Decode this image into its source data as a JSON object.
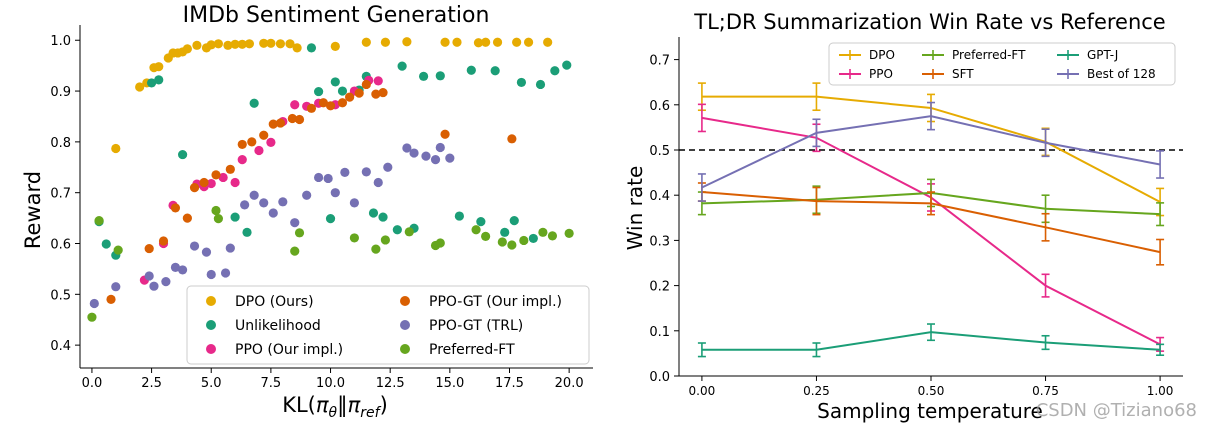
{
  "watermark": "CSDN @Tiziano68",
  "colors": {
    "dpo": "#e6ab02",
    "unlikelihood": "#1b9e77",
    "ppo": "#e7298a",
    "ppo_gt_ours": "#d95f02",
    "ppo_gt_trl": "#7570b3",
    "preferred_ft": "#66a61e",
    "gptj": "#1b9e77",
    "sft": "#d95f02",
    "best128": "#7570b3"
  },
  "chart_data": [
    {
      "type": "scatter",
      "title": "IMDb Sentiment Generation",
      "xlabel": "KL(πθ‖πref)",
      "ylabel": "Reward",
      "xlim": [
        -0.5,
        21.0
      ],
      "ylim": [
        0.355,
        1.03
      ],
      "xticks": [
        0.0,
        2.5,
        5.0,
        7.5,
        10.0,
        12.5,
        15.0,
        17.5,
        20.0
      ],
      "xtick_labels": [
        "0.0",
        "2.5",
        "5.0",
        "7.5",
        "10.0",
        "12.5",
        "15.0",
        "17.5",
        "20.0"
      ],
      "yticks": [
        0.4,
        0.5,
        0.6,
        0.7,
        0.8,
        0.9,
        1.0
      ],
      "ytick_labels": [
        "0.4",
        "0.5",
        "0.6",
        "0.7",
        "0.8",
        "0.9",
        "1.0"
      ],
      "legend_position": "bottom-right",
      "legend_columns": 2,
      "series": [
        {
          "name": "DPO (Ours)",
          "color_key": "dpo",
          "points": [
            [
              1.0,
              0.787
            ],
            [
              2.0,
              0.908
            ],
            [
              2.3,
              0.916
            ],
            [
              2.6,
              0.946
            ],
            [
              2.8,
              0.948
            ],
            [
              3.2,
              0.965
            ],
            [
              3.4,
              0.975
            ],
            [
              3.6,
              0.975
            ],
            [
              3.8,
              0.977
            ],
            [
              4.0,
              0.983
            ],
            [
              4.4,
              0.99
            ],
            [
              4.8,
              0.985
            ],
            [
              5.0,
              0.991
            ],
            [
              5.3,
              0.993
            ],
            [
              5.7,
              0.99
            ],
            [
              6.0,
              0.992
            ],
            [
              6.3,
              0.992
            ],
            [
              6.6,
              0.993
            ],
            [
              7.2,
              0.994
            ],
            [
              7.5,
              0.994
            ],
            [
              7.9,
              0.993
            ],
            [
              8.3,
              0.993
            ],
            [
              8.6,
              0.985
            ],
            [
              10.2,
              0.988
            ],
            [
              11.5,
              0.996
            ],
            [
              12.3,
              0.996
            ],
            [
              13.2,
              0.997
            ],
            [
              14.8,
              0.996
            ],
            [
              15.3,
              0.996
            ],
            [
              16.2,
              0.995
            ],
            [
              16.5,
              0.996
            ],
            [
              17.0,
              0.996
            ],
            [
              17.8,
              0.996
            ],
            [
              18.3,
              0.996
            ],
            [
              19.1,
              0.996
            ]
          ]
        },
        {
          "name": "Unlikelihood",
          "color_key": "unlikelihood",
          "points": [
            [
              0.3,
              0.643
            ],
            [
              0.6,
              0.599
            ],
            [
              1.0,
              0.577
            ],
            [
              2.5,
              0.916
            ],
            [
              2.8,
              0.922
            ],
            [
              3.8,
              0.775
            ],
            [
              6.0,
              0.652
            ],
            [
              6.5,
              0.622
            ],
            [
              6.8,
              0.876
            ],
            [
              9.2,
              0.985
            ],
            [
              9.5,
              0.899
            ],
            [
              10.0,
              0.649
            ],
            [
              10.2,
              0.918
            ],
            [
              10.5,
              0.9
            ],
            [
              11.2,
              0.902
            ],
            [
              11.5,
              0.929
            ],
            [
              11.8,
              0.66
            ],
            [
              12.2,
              0.652
            ],
            [
              12.8,
              0.627
            ],
            [
              13.0,
              0.949
            ],
            [
              13.5,
              0.63
            ],
            [
              13.9,
              0.929
            ],
            [
              14.6,
              0.93
            ],
            [
              15.4,
              0.654
            ],
            [
              15.9,
              0.941
            ],
            [
              16.3,
              0.643
            ],
            [
              16.9,
              0.94
            ],
            [
              17.3,
              0.622
            ],
            [
              17.7,
              0.645
            ],
            [
              18.0,
              0.917
            ],
            [
              18.5,
              0.61
            ],
            [
              18.8,
              0.913
            ],
            [
              19.4,
              0.94
            ],
            [
              19.9,
              0.951
            ]
          ]
        },
        {
          "name": "PPO (Our impl.)",
          "color_key": "ppo",
          "points": [
            [
              2.2,
              0.528
            ],
            [
              3.0,
              0.6
            ],
            [
              3.4,
              0.675
            ],
            [
              4.4,
              0.717
            ],
            [
              4.7,
              0.712
            ],
            [
              5.0,
              0.718
            ],
            [
              5.5,
              0.73
            ],
            [
              6.0,
              0.72
            ],
            [
              6.3,
              0.765
            ],
            [
              7.0,
              0.783
            ],
            [
              7.5,
              0.799
            ],
            [
              8.0,
              0.84
            ],
            [
              8.5,
              0.873
            ],
            [
              9.0,
              0.87
            ],
            [
              9.5,
              0.876
            ],
            [
              10.2,
              0.873
            ],
            [
              11.0,
              0.9
            ],
            [
              11.6,
              0.921
            ],
            [
              12.0,
              0.92
            ]
          ]
        },
        {
          "name": "PPO-GT (Our impl.)",
          "color_key": "ppo_gt_ours",
          "points": [
            [
              0.8,
              0.49
            ],
            [
              2.4,
              0.59
            ],
            [
              3.0,
              0.605
            ],
            [
              3.5,
              0.67
            ],
            [
              4.0,
              0.65
            ],
            [
              4.3,
              0.71
            ],
            [
              4.7,
              0.72
            ],
            [
              5.2,
              0.735
            ],
            [
              5.8,
              0.746
            ],
            [
              6.3,
              0.795
            ],
            [
              6.7,
              0.8
            ],
            [
              7.2,
              0.813
            ],
            [
              7.6,
              0.835
            ],
            [
              7.9,
              0.837
            ],
            [
              8.4,
              0.846
            ],
            [
              8.7,
              0.844
            ],
            [
              9.2,
              0.866
            ],
            [
              9.7,
              0.877
            ],
            [
              10.0,
              0.871
            ],
            [
              10.5,
              0.877
            ],
            [
              10.8,
              0.888
            ],
            [
              11.2,
              0.896
            ],
            [
              11.5,
              0.913
            ],
            [
              11.9,
              0.894
            ],
            [
              12.2,
              0.897
            ],
            [
              14.8,
              0.815
            ],
            [
              17.6,
              0.806
            ]
          ]
        },
        {
          "name": "PPO-GT (TRL)",
          "color_key": "ppo_gt_trl",
          "points": [
            [
              0.1,
              0.482
            ],
            [
              1.0,
              0.515
            ],
            [
              2.4,
              0.536
            ],
            [
              2.6,
              0.516
            ],
            [
              3.1,
              0.525
            ],
            [
              3.5,
              0.553
            ],
            [
              3.8,
              0.548
            ],
            [
              4.3,
              0.595
            ],
            [
              4.8,
              0.583
            ],
            [
              5.0,
              0.539
            ],
            [
              5.6,
              0.542
            ],
            [
              5.8,
              0.591
            ],
            [
              6.4,
              0.676
            ],
            [
              6.8,
              0.695
            ],
            [
              7.2,
              0.68
            ],
            [
              7.6,
              0.66
            ],
            [
              8.0,
              0.682
            ],
            [
              8.5,
              0.641
            ],
            [
              9.0,
              0.695
            ],
            [
              9.5,
              0.73
            ],
            [
              9.9,
              0.728
            ],
            [
              10.2,
              0.7
            ],
            [
              10.6,
              0.74
            ],
            [
              11.0,
              0.68
            ],
            [
              11.5,
              0.741
            ],
            [
              12.0,
              0.72
            ],
            [
              12.4,
              0.75
            ],
            [
              13.2,
              0.788
            ],
            [
              13.5,
              0.778
            ],
            [
              14.0,
              0.772
            ],
            [
              14.4,
              0.765
            ],
            [
              14.6,
              0.789
            ],
            [
              15.0,
              0.768
            ]
          ]
        },
        {
          "name": "Preferred-FT",
          "color_key": "preferred_ft",
          "points": [
            [
              0.0,
              0.455
            ],
            [
              0.3,
              0.645
            ],
            [
              1.1,
              0.587
            ],
            [
              5.2,
              0.665
            ],
            [
              5.3,
              0.649
            ],
            [
              8.5,
              0.585
            ],
            [
              8.7,
              0.621
            ],
            [
              11.0,
              0.611
            ],
            [
              11.9,
              0.589
            ],
            [
              12.3,
              0.607
            ],
            [
              13.3,
              0.623
            ],
            [
              14.4,
              0.596
            ],
            [
              14.6,
              0.601
            ],
            [
              16.1,
              0.627
            ],
            [
              16.5,
              0.614
            ],
            [
              17.2,
              0.603
            ],
            [
              17.6,
              0.597
            ],
            [
              18.1,
              0.606
            ],
            [
              18.9,
              0.622
            ],
            [
              19.3,
              0.615
            ],
            [
              20.0,
              0.62
            ]
          ]
        }
      ]
    },
    {
      "type": "line",
      "title": "TL;DR Summarization Win Rate vs Reference",
      "xlabel": "Sampling temperature",
      "ylabel": "Win rate",
      "xlim": [
        -0.05,
        1.05
      ],
      "ylim": [
        0.0,
        0.75
      ],
      "x": [
        0.0,
        0.25,
        0.5,
        0.75,
        1.0
      ],
      "xticks": [
        0.0,
        0.25,
        0.5,
        0.75,
        1.0
      ],
      "xtick_labels": [
        "0.00",
        "0.25",
        "0.50",
        "0.75",
        "1.00"
      ],
      "yticks": [
        0.0,
        0.1,
        0.2,
        0.3,
        0.4,
        0.5,
        0.6,
        0.7
      ],
      "ytick_labels": [
        "0.0",
        "0.1",
        "0.2",
        "0.3",
        "0.4",
        "0.5",
        "0.6",
        "0.7"
      ],
      "reference_line": 0.5,
      "legend_position": "top-right",
      "legend_columns": 3,
      "series": [
        {
          "name": "DPO",
          "color_key": "dpo",
          "values": [
            0.618,
            0.618,
            0.593,
            0.518,
            0.385
          ],
          "err": [
            0.03,
            0.03,
            0.03,
            0.03,
            0.03
          ]
        },
        {
          "name": "PPO",
          "color_key": "ppo",
          "values": [
            0.571,
            0.527,
            0.395,
            0.2,
            0.07
          ],
          "err": [
            0.03,
            0.03,
            0.03,
            0.025,
            0.015
          ]
        },
        {
          "name": "Preferred-FT",
          "color_key": "preferred_ft",
          "values": [
            0.382,
            0.39,
            0.405,
            0.37,
            0.358
          ],
          "err": [
            0.025,
            0.03,
            0.03,
            0.03,
            0.025
          ]
        },
        {
          "name": "SFT",
          "color_key": "sft",
          "values": [
            0.407,
            0.387,
            0.382,
            0.329,
            0.274
          ],
          "err": [
            0.02,
            0.03,
            0.025,
            0.03,
            0.028
          ]
        },
        {
          "name": "GPT-J",
          "color_key": "gptj",
          "values": [
            0.058,
            0.058,
            0.097,
            0.074,
            0.058
          ],
          "err": [
            0.015,
            0.015,
            0.018,
            0.015,
            0.012
          ]
        },
        {
          "name": "Best of 128",
          "color_key": "best128",
          "values": [
            0.417,
            0.538,
            0.575,
            0.516,
            0.468
          ],
          "err": [
            0.03,
            0.03,
            0.03,
            0.03,
            0.03
          ]
        }
      ]
    }
  ]
}
